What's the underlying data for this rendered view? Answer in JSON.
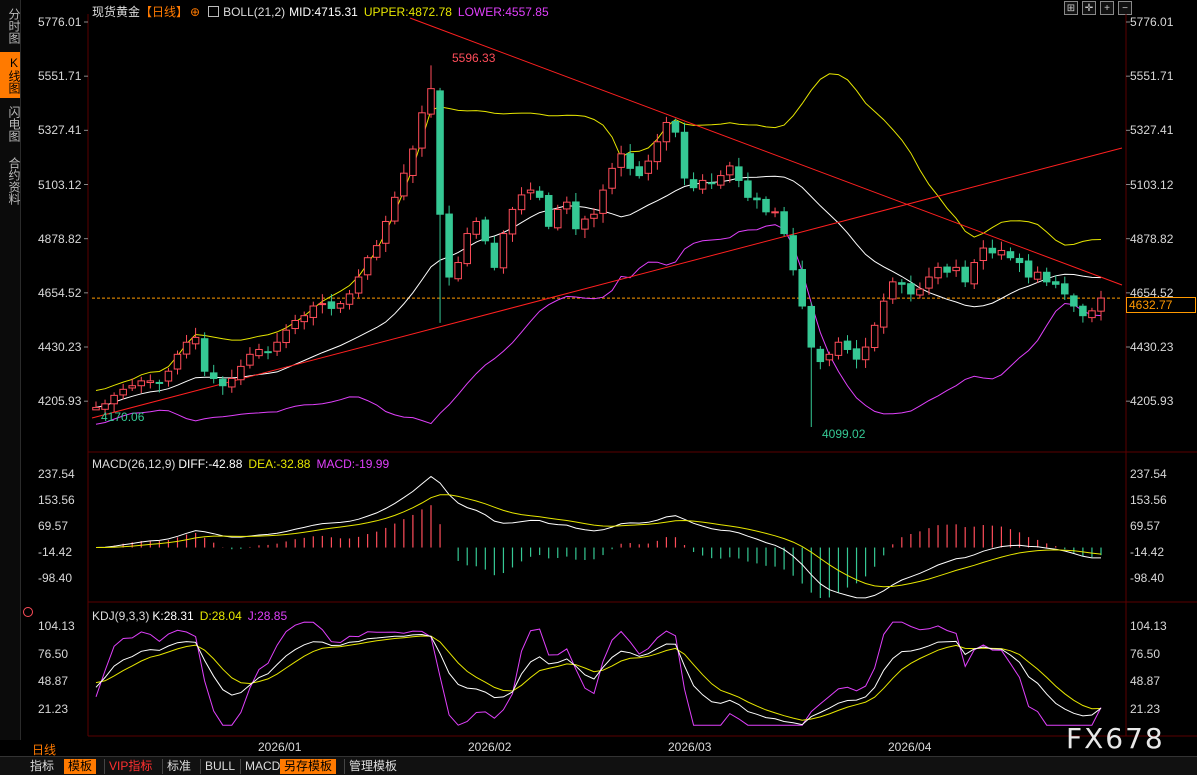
{
  "vtabs": [
    "分时图",
    "K线图",
    "闪电图",
    "合约资料"
  ],
  "main_header": {
    "symbol": "现货黄金",
    "period": "【日线】",
    "add_icon": "⊕",
    "indicator": "BOLL(21,2)",
    "mid": "MID:4715.31",
    "upper": "UPPER:4872.78",
    "lower": "LOWER:4557.85"
  },
  "price_axis": [
    "5776.01",
    "5551.71",
    "5327.41",
    "5103.12",
    "4878.82",
    "4654.52",
    "4430.23",
    "4205.93"
  ],
  "current_price": "4632.77",
  "annotations": {
    "high": "5596.33",
    "low1": "4170.06",
    "low2": "4099.02"
  },
  "macd_header": {
    "name": "MACD(26,12,9)",
    "diff": "DIFF:-42.88",
    "dea": "DEA:-32.88",
    "macd": "MACD:-19.99"
  },
  "macd_axis": [
    "237.54",
    "153.56",
    "69.57",
    "-14.42",
    "-98.40"
  ],
  "kdj_header": {
    "name": "KDJ(9,3,3)",
    "k": "K:28.31",
    "d": "D:28.04",
    "j": "J:28.85"
  },
  "kdj_axis": [
    "104.13",
    "76.50",
    "48.87",
    "21.23"
  ],
  "date_axis": [
    "2026/01",
    "2026/02",
    "2026/03",
    "2026/04"
  ],
  "period_label": "日线",
  "toolbar": [
    "指标",
    "模板",
    "VIP指标",
    "标准",
    "BULL",
    "MACD",
    "另存模板",
    "管理模板"
  ],
  "watermark": "FX678",
  "colors": {
    "up": "#ff4d5a",
    "down": "#35c894",
    "mid": "#ffffff",
    "upper": "#e6e600",
    "lower": "#e040fb",
    "trend": "#ff2020",
    "orange": "#ff7a00"
  },
  "icons": {
    "plus": "plus-circle-icon",
    "ctrl": [
      "grid-icon",
      "crosshair-icon",
      "zoom-in-icon",
      "zoom-out-icon"
    ]
  },
  "chart_data": {
    "type": "candlestick",
    "price_range": [
      4099.02,
      5776.01
    ],
    "anchors_close": [
      4180,
      4195,
      4230,
      4255,
      4270,
      4290,
      4290,
      4280,
      4330,
      4400,
      4450,
      4470,
      4330,
      4300,
      4270,
      4300,
      4350,
      4400,
      4420,
      4410,
      4450,
      4500,
      4540,
      4560,
      4600,
      4610,
      4590,
      4610,
      4650,
      4720,
      4800,
      4850,
      4950,
      5050,
      5150,
      5250,
      5400,
      5500,
      4980,
      4720,
      4780,
      4900,
      4950,
      4870,
      4760,
      4900,
      5000,
      5060,
      5080,
      5050,
      4930,
      5000,
      5030,
      4920,
      4960,
      4980,
      5080,
      5170,
      5230,
      5170,
      5140,
      5200,
      5280,
      5360,
      5320,
      5130,
      5090,
      5120,
      5110,
      5140,
      5180,
      5120,
      5050,
      5040,
      4990,
      4990,
      4900,
      4750,
      4600,
      4430,
      4370,
      4400,
      4450,
      4420,
      4380,
      4430,
      4520,
      4620,
      4700,
      4690,
      4650,
      4670,
      4720,
      4760,
      4740,
      4760,
      4700,
      4780,
      4840,
      4820,
      4830,
      4800,
      4780,
      4720,
      4740,
      4700,
      4690,
      4650,
      4600,
      4560,
      4580,
      4632.77
    ]
  }
}
